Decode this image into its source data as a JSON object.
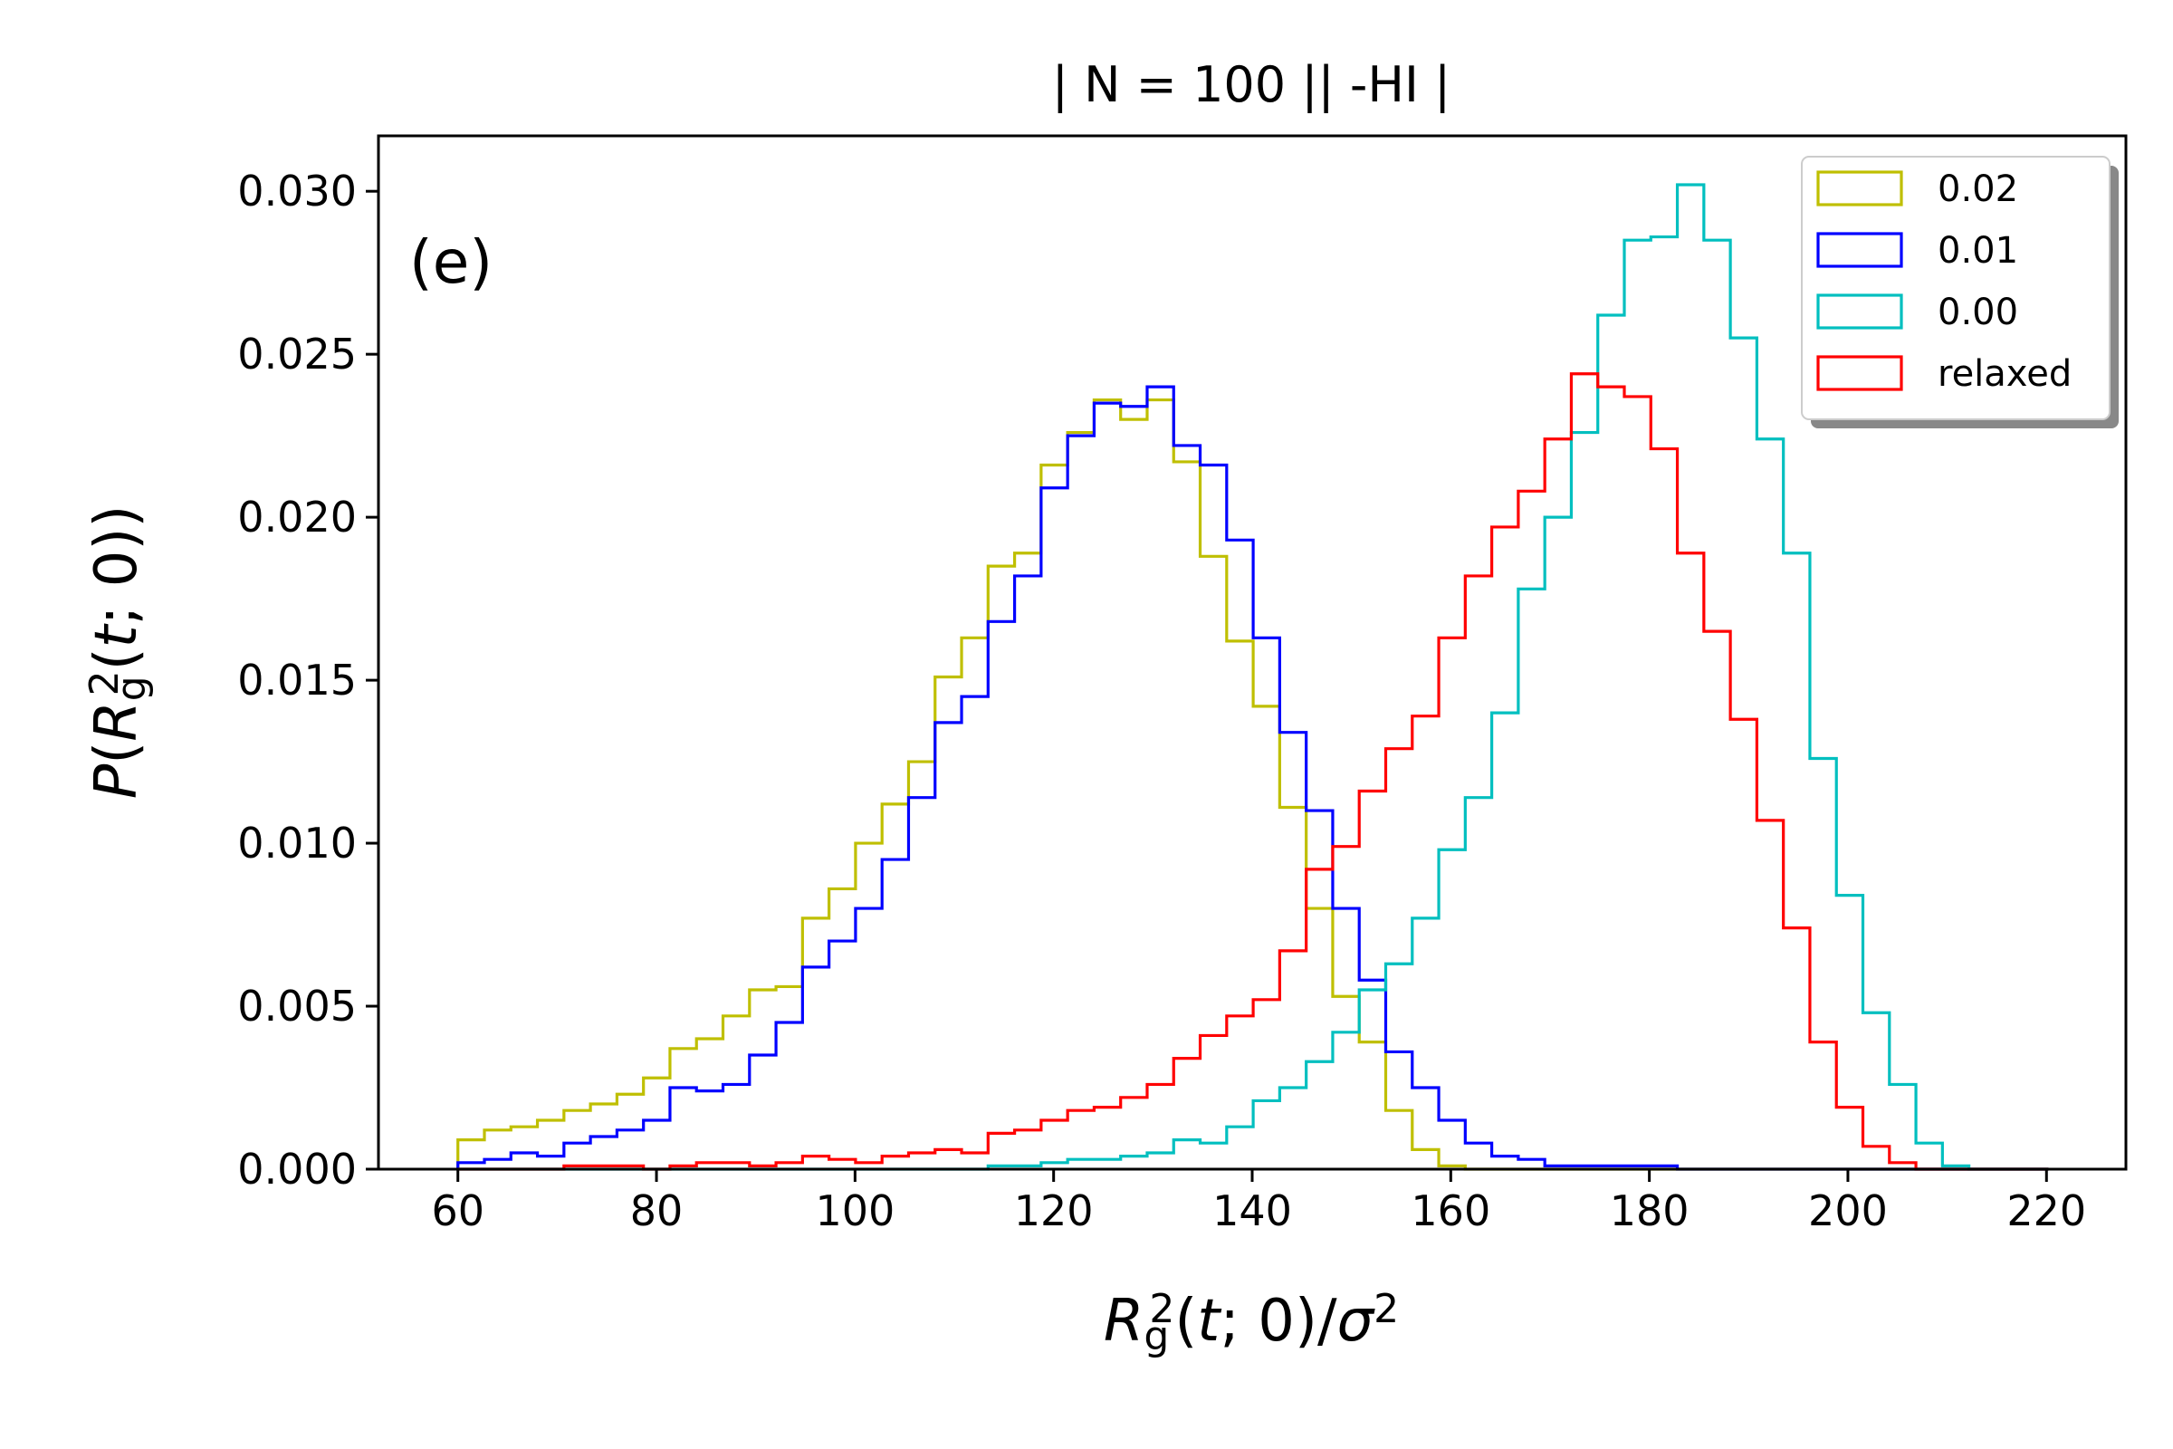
{
  "chart_data": {
    "type": "histogram",
    "title": "| N = 100 || -HI |",
    "panel_label": "(e)",
    "xlabel": "R_g^2(t; 0)/σ^2",
    "ylabel": "P(R_g^2(t; 0))",
    "xlim": [
      52,
      228
    ],
    "ylim": [
      0,
      0.0317
    ],
    "x_ticks": [
      60,
      80,
      100,
      120,
      140,
      160,
      180,
      200,
      220
    ],
    "y_ticks": [
      0.0,
      0.005,
      0.01,
      0.015,
      0.02,
      0.025,
      0.03
    ],
    "x_tick_labels": [
      "60",
      "80",
      "100",
      "120",
      "140",
      "160",
      "180",
      "200",
      "220"
    ],
    "y_tick_labels": [
      "0.000",
      "0.005",
      "0.010",
      "0.015",
      "0.020",
      "0.025",
      "0.030"
    ],
    "legend_position": "upper right",
    "bin_start": 60,
    "bin_width": 2.67,
    "series": [
      {
        "name": "0.02",
        "color": "#bfbf00",
        "values": [
          0.0009,
          0.0012,
          0.0013,
          0.0015,
          0.0018,
          0.002,
          0.0023,
          0.0028,
          0.0037,
          0.004,
          0.0047,
          0.0055,
          0.0056,
          0.0077,
          0.0086,
          0.01,
          0.0112,
          0.0125,
          0.0151,
          0.0163,
          0.0185,
          0.0189,
          0.0216,
          0.0226,
          0.0236,
          0.023,
          0.0236,
          0.0217,
          0.0188,
          0.0162,
          0.0142,
          0.0111,
          0.008,
          0.0053,
          0.0039,
          0.0018,
          0.0006,
          0.0001,
          0.0,
          0.0,
          0.0,
          0.0,
          0.0,
          0.0,
          0.0,
          0.0,
          0.0,
          0.0,
          0.0,
          0.0,
          0.0,
          0.0,
          0.0,
          0.0,
          0.0,
          0.0,
          0.0,
          0.0,
          0.0,
          0.0
        ]
      },
      {
        "name": "0.01",
        "color": "#0000ff",
        "values": [
          0.0002,
          0.0003,
          0.0005,
          0.0004,
          0.0008,
          0.001,
          0.0012,
          0.0015,
          0.0025,
          0.0024,
          0.0026,
          0.0035,
          0.0045,
          0.0062,
          0.007,
          0.008,
          0.0095,
          0.0114,
          0.0137,
          0.0145,
          0.0168,
          0.0182,
          0.0209,
          0.0225,
          0.0235,
          0.0234,
          0.024,
          0.0222,
          0.0216,
          0.0193,
          0.0163,
          0.0134,
          0.011,
          0.008,
          0.0058,
          0.0036,
          0.0025,
          0.0015,
          0.0008,
          0.0004,
          0.0003,
          0.0001,
          0.0001,
          0.0001,
          0.0001,
          0.0001,
          0.0,
          0.0,
          0.0,
          0.0,
          0.0,
          0.0,
          0.0,
          0.0,
          0.0,
          0.0,
          0.0,
          0.0,
          0.0,
          0.0
        ]
      },
      {
        "name": "0.00",
        "color": "#00bfbf",
        "values": [
          0.0,
          0.0,
          0.0,
          0.0,
          0.0,
          0.0,
          0.0,
          0.0,
          0.0,
          0.0,
          0.0,
          0.0,
          0.0,
          0.0,
          0.0,
          0.0,
          0.0,
          0.0,
          0.0,
          0.0,
          0.0001,
          0.0001,
          0.0002,
          0.0003,
          0.0003,
          0.0004,
          0.0005,
          0.0009,
          0.0008,
          0.0013,
          0.0021,
          0.0025,
          0.0033,
          0.0042,
          0.0055,
          0.0063,
          0.0077,
          0.0098,
          0.0114,
          0.014,
          0.0178,
          0.02,
          0.0226,
          0.0262,
          0.0285,
          0.0286,
          0.0302,
          0.0285,
          0.0255,
          0.0224,
          0.0189,
          0.0126,
          0.0084,
          0.0048,
          0.0026,
          0.0008,
          0.0001,
          0.0,
          0.0,
          0.0
        ]
      },
      {
        "name": "relaxed",
        "color": "#ff0000",
        "values": [
          0.0,
          0.0,
          0.0,
          0.0,
          0.0001,
          0.0001,
          0.0001,
          0.0,
          0.0001,
          0.0002,
          0.0002,
          0.0001,
          0.0002,
          0.0004,
          0.0003,
          0.0002,
          0.0004,
          0.0005,
          0.0006,
          0.0005,
          0.0011,
          0.0012,
          0.0015,
          0.0018,
          0.0019,
          0.0022,
          0.0026,
          0.0034,
          0.0041,
          0.0047,
          0.0052,
          0.0067,
          0.0092,
          0.0099,
          0.0116,
          0.0129,
          0.0139,
          0.0163,
          0.0182,
          0.0197,
          0.0208,
          0.0224,
          0.0244,
          0.024,
          0.0237,
          0.0221,
          0.0189,
          0.0165,
          0.0138,
          0.0107,
          0.0074,
          0.0039,
          0.0019,
          0.0007,
          0.0002,
          0.0,
          0.0,
          0.0,
          0.0,
          0.0
        ]
      }
    ]
  }
}
